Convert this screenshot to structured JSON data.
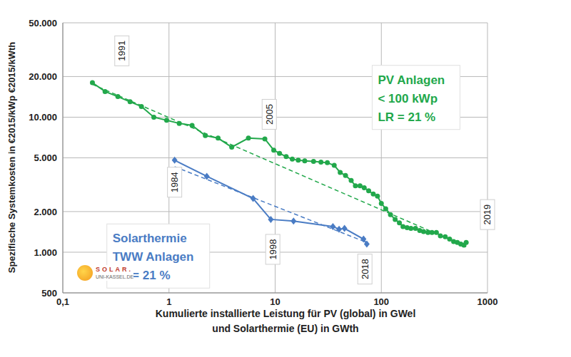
{
  "chart_data": {
    "type": "line",
    "log": true,
    "grid": true,
    "x_label": [
      "Kumulierte installierte Leistung für PV (global) in GWel",
      "und Solarthermie (EU) in GWth"
    ],
    "y_label": "Spezifische Systemkosten in €2015/kWp  €2015/kWth",
    "xlim": [
      0.1,
      1000
    ],
    "ylim": [
      500,
      50000
    ],
    "xticks": [
      {
        "value": 0.1,
        "label": "0,1"
      },
      1,
      10,
      100,
      1000
    ],
    "yticks": [
      500,
      {
        "value": 1000,
        "label": "1.000"
      },
      {
        "value": 2000,
        "label": "2.000"
      },
      {
        "value": 5000,
        "label": "5.000"
      },
      {
        "value": 10000,
        "label": "10.000"
      },
      {
        "value": 20000,
        "label": "20.000"
      },
      {
        "value": 50000,
        "label": "50.000"
      }
    ],
    "series": [
      {
        "color": "#22a84b",
        "marker": "circle",
        "line_style": "solid",
        "x": [
          0.19,
          0.25,
          0.33,
          0.43,
          0.55,
          0.72,
          0.95,
          1.25,
          1.65,
          2.2,
          2.9,
          3.9,
          5.6,
          8.0,
          9.7,
          11,
          12.7,
          14.5,
          16.5,
          19,
          23,
          27,
          31,
          36,
          41,
          46,
          52,
          57,
          63,
          69,
          76,
          84,
          92,
          100,
          110,
          122,
          135,
          148,
          160,
          175,
          190,
          210,
          230,
          250,
          275,
          300,
          330,
          360,
          400,
          440,
          480,
          520,
          560,
          600,
          630
        ],
        "values": [
          18000,
          15500,
          14200,
          13000,
          12000,
          10000,
          9500,
          9000,
          8700,
          7300,
          7000,
          6000,
          7000,
          6900,
          5700,
          5400,
          5100,
          4900,
          4800,
          4750,
          4700,
          4650,
          4600,
          4400,
          3900,
          3700,
          3400,
          3100,
          3100,
          3000,
          2850,
          2700,
          2600,
          2300,
          2100,
          1900,
          1750,
          1650,
          1550,
          1520,
          1500,
          1500,
          1450,
          1420,
          1400,
          1400,
          1400,
          1320,
          1300,
          1250,
          1200,
          1180,
          1150,
          1130,
          1180
        ]
      },
      {
        "color": "#22a84b",
        "marker": "none",
        "line_style": "dashed",
        "x": [
          0.19,
          630
        ],
        "values": [
          17500,
          1100
        ]
      },
      {
        "color": "#4a7cc4",
        "marker": "diamond",
        "line_style": "solid",
        "x": [
          1.13,
          2.27,
          6.2,
          9.1,
          14.9,
          35,
          40,
          45,
          68,
          73
        ],
        "values": [
          4800,
          3650,
          2500,
          1750,
          1700,
          1550,
          1480,
          1500,
          1250,
          1150
        ]
      },
      {
        "color": "#4a7cc4",
        "marker": "none",
        "line_style": "dashed",
        "x": [
          1.13,
          73
        ],
        "values": [
          4300,
          1180
        ]
      }
    ],
    "annotations": [
      {
        "text": "1991",
        "x": 0.36,
        "y": 31000
      },
      {
        "text": "2005",
        "x": 8.8,
        "y": 10500
      },
      {
        "text": "1984",
        "x": 1.13,
        "y": 3300
      },
      {
        "text": "1998",
        "x": 9.5,
        "y": 1050
      },
      {
        "text": "2018",
        "x": 70,
        "y": 750
      },
      {
        "text": "2019",
        "x": 1000,
        "y": 1900
      }
    ],
    "text_boxes": [
      {
        "lines": [
          "PV Anlagen",
          "< 100 kWp",
          "LR = 21 %"
        ],
        "color": "#22a84b",
        "x": 82,
        "y": 24200
      },
      {
        "lines": [
          "Solarthermie",
          "TWW Anlagen",
          "LR = 21 %"
        ],
        "color": "#4a7cc4",
        "x": 0.26,
        "y": 1620
      }
    ],
    "logo": [
      "SOLAR.",
      "UNI-KASSEL.DE"
    ]
  }
}
